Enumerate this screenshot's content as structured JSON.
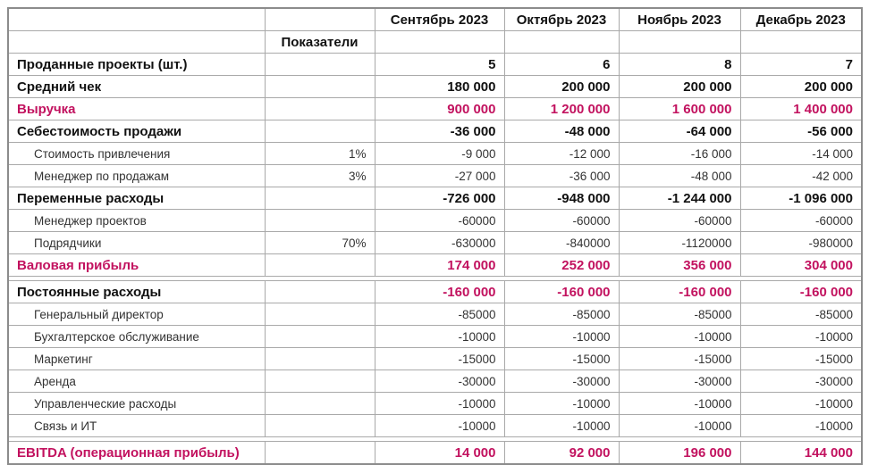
{
  "colors": {
    "accent": "#c2125f",
    "text": "#111111",
    "sub_text": "#333333",
    "grid_line": "#a9a9a9",
    "outer_border": "#8c8c8c"
  },
  "table": {
    "header": {
      "corner": "",
      "indicators_label": "Показатели",
      "months": [
        "Сентябрь 2023",
        "Октябрь 2023",
        "Ноябрь 2023",
        "Декабрь 2023"
      ]
    },
    "rows": [
      {
        "label": "Проданные проекты (шт.)",
        "pct": "",
        "values": [
          "5",
          "6",
          "8",
          "7"
        ],
        "style": "main"
      },
      {
        "label": "Средний чек",
        "pct": "",
        "values": [
          "180 000",
          "200 000",
          "200 000",
          "200 000"
        ],
        "style": "main"
      },
      {
        "label": "Выручка",
        "pct": "",
        "values": [
          "900 000",
          "1 200 000",
          "1 600 000",
          "1 400 000"
        ],
        "style": "accent"
      },
      {
        "label": "Себестоимость продажи",
        "pct": "",
        "values": [
          "-36 000",
          "-48 000",
          "-64 000",
          "-56 000"
        ],
        "style": "main"
      },
      {
        "label": "Стоимость привлечения",
        "pct": "1%",
        "values": [
          "-9 000",
          "-12 000",
          "-16 000",
          "-14 000"
        ],
        "style": "sub"
      },
      {
        "label": "Менеджер по продажам",
        "pct": "3%",
        "values": [
          "-27 000",
          "-36 000",
          "-48 000",
          "-42 000"
        ],
        "style": "sub"
      },
      {
        "label": "Переменные расходы",
        "pct": "",
        "values": [
          "-726 000",
          "-948 000",
          "-1 244 000",
          "-1 096 000"
        ],
        "style": "main"
      },
      {
        "label": "Менеджер проектов",
        "pct": "",
        "values": [
          "-60000",
          "-60000",
          "-60000",
          "-60000"
        ],
        "style": "sub"
      },
      {
        "label": "Подрядчики",
        "pct": "70%",
        "values": [
          "-630000",
          "-840000",
          "-1120000",
          "-980000"
        ],
        "style": "sub"
      },
      {
        "label": "Валовая прибыль",
        "pct": "",
        "values": [
          "174 000",
          "252 000",
          "356 000",
          "304 000"
        ],
        "style": "accent"
      },
      {
        "style": "spacer"
      },
      {
        "label": "Постоянные расходы",
        "pct": "",
        "values": [
          "-160 000",
          "-160 000",
          "-160 000",
          "-160 000"
        ],
        "style": "main-accent-values"
      },
      {
        "label": "Генеральный директор",
        "pct": "",
        "values": [
          "-85000",
          "-85000",
          "-85000",
          "-85000"
        ],
        "style": "sub"
      },
      {
        "label": "Бухгалтерское обслуживание",
        "pct": "",
        "values": [
          "-10000",
          "-10000",
          "-10000",
          "-10000"
        ],
        "style": "sub"
      },
      {
        "label": "Маркетинг",
        "pct": "",
        "values": [
          "-15000",
          "-15000",
          "-15000",
          "-15000"
        ],
        "style": "sub"
      },
      {
        "label": "Аренда",
        "pct": "",
        "values": [
          "-30000",
          "-30000",
          "-30000",
          "-30000"
        ],
        "style": "sub"
      },
      {
        "label": "Управленческие расходы",
        "pct": "",
        "values": [
          "-10000",
          "-10000",
          "-10000",
          "-10000"
        ],
        "style": "sub"
      },
      {
        "label": "Связь и ИТ",
        "pct": "",
        "values": [
          "-10000",
          "-10000",
          "-10000",
          "-10000"
        ],
        "style": "sub"
      },
      {
        "style": "spacer"
      },
      {
        "label": "EBITDA (операционная прибыль)",
        "pct": "",
        "values": [
          "14 000",
          "92 000",
          "196 000",
          "144 000"
        ],
        "style": "accent"
      }
    ]
  }
}
